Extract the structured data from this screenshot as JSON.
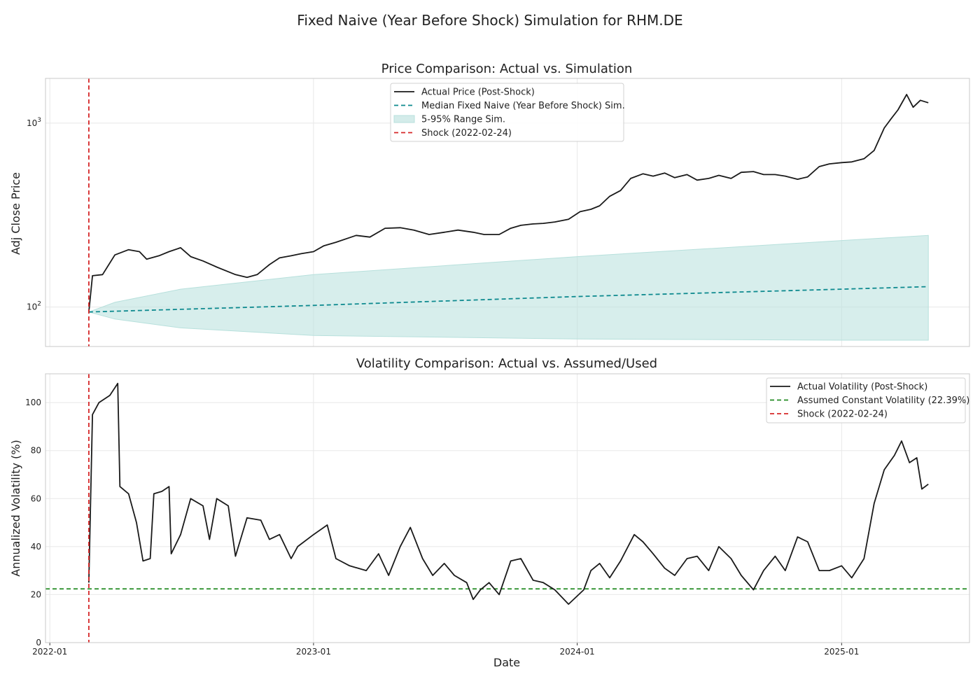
{
  "figure": {
    "title": "Fixed Naive (Year Before Shock) Simulation for RHM.DE"
  },
  "colors": {
    "actual": "#1a1a1a",
    "median": "#0e8a8f",
    "band": "#b7e0dc",
    "shock": "#d62728",
    "assumed": "#228b22",
    "grid": "#e8e8e8",
    "spine": "#c8c8c8"
  },
  "chart_data": [
    {
      "type": "line",
      "title": "Price Comparison: Actual vs. Simulation",
      "xlabel": "",
      "ylabel": "Adj Close Price",
      "yscale": "log",
      "ylim": [
        61,
        1750
      ],
      "xlim": [
        "2021-12-26",
        "2025-06-27"
      ],
      "x_ticks": [
        "2022-01",
        "2023-01",
        "2024-01",
        "2025-01"
      ],
      "y_ticks": [
        {
          "value": 100,
          "base": "10",
          "exp": "2"
        },
        {
          "value": 1000,
          "base": "10",
          "exp": "3"
        }
      ],
      "grid": true,
      "legend_placement": "top-center",
      "shock_date": "2022-02-24",
      "series": [
        {
          "name": "Actual Price (Post-Shock)",
          "style": "solid",
          "points": [
            [
              "2022-02-24",
              94
            ],
            [
              "2022-03-01",
              148
            ],
            [
              "2022-03-15",
              150
            ],
            [
              "2022-04-01",
              192
            ],
            [
              "2022-04-20",
              205
            ],
            [
              "2022-05-05",
              200
            ],
            [
              "2022-05-15",
              182
            ],
            [
              "2022-06-01",
              190
            ],
            [
              "2022-06-15",
              200
            ],
            [
              "2022-07-01",
              210
            ],
            [
              "2022-07-15",
              188
            ],
            [
              "2022-08-01",
              178
            ],
            [
              "2022-08-20",
              165
            ],
            [
              "2022-09-15",
              150
            ],
            [
              "2022-10-01",
              145
            ],
            [
              "2022-10-15",
              150
            ],
            [
              "2022-11-01",
              170
            ],
            [
              "2022-11-15",
              185
            ],
            [
              "2022-12-01",
              190
            ],
            [
              "2022-12-15",
              195
            ],
            [
              "2023-01-01",
              200
            ],
            [
              "2023-01-15",
              215
            ],
            [
              "2023-02-01",
              225
            ],
            [
              "2023-03-01",
              245
            ],
            [
              "2023-03-20",
              240
            ],
            [
              "2023-04-10",
              268
            ],
            [
              "2023-05-01",
              270
            ],
            [
              "2023-05-20",
              262
            ],
            [
              "2023-06-10",
              248
            ],
            [
              "2023-07-01",
              255
            ],
            [
              "2023-07-20",
              262
            ],
            [
              "2023-08-10",
              255
            ],
            [
              "2023-08-25",
              248
            ],
            [
              "2023-09-15",
              248
            ],
            [
              "2023-10-01",
              268
            ],
            [
              "2023-10-15",
              278
            ],
            [
              "2023-11-01",
              283
            ],
            [
              "2023-11-15",
              285
            ],
            [
              "2023-12-01",
              290
            ],
            [
              "2023-12-20",
              300
            ],
            [
              "2024-01-05",
              330
            ],
            [
              "2024-01-20",
              340
            ],
            [
              "2024-02-01",
              355
            ],
            [
              "2024-02-15",
              400
            ],
            [
              "2024-03-01",
              430
            ],
            [
              "2024-03-15",
              500
            ],
            [
              "2024-04-01",
              530
            ],
            [
              "2024-04-15",
              515
            ],
            [
              "2024-05-01",
              535
            ],
            [
              "2024-05-15",
              505
            ],
            [
              "2024-06-01",
              525
            ],
            [
              "2024-06-15",
              490
            ],
            [
              "2024-07-01",
              500
            ],
            [
              "2024-07-15",
              520
            ],
            [
              "2024-08-01",
              500
            ],
            [
              "2024-08-15",
              540
            ],
            [
              "2024-09-01",
              545
            ],
            [
              "2024-09-15",
              525
            ],
            [
              "2024-10-01",
              525
            ],
            [
              "2024-10-15",
              515
            ],
            [
              "2024-11-01",
              495
            ],
            [
              "2024-11-15",
              510
            ],
            [
              "2024-12-01",
              580
            ],
            [
              "2024-12-15",
              600
            ],
            [
              "2025-01-01",
              610
            ],
            [
              "2025-01-15",
              615
            ],
            [
              "2025-02-01",
              640
            ],
            [
              "2025-02-15",
              710
            ],
            [
              "2025-03-01",
              940
            ],
            [
              "2025-03-10",
              1050
            ],
            [
              "2025-03-20",
              1180
            ],
            [
              "2025-04-01",
              1430
            ],
            [
              "2025-04-10",
              1220
            ],
            [
              "2025-04-20",
              1330
            ],
            [
              "2025-05-01",
              1290
            ]
          ]
        },
        {
          "name": "Median Fixed Naive (Year Before Shock) Sim.",
          "style": "dashed",
          "points": [
            [
              "2022-02-24",
              94
            ],
            [
              "2023-01-01",
              102
            ],
            [
              "2024-01-01",
              114
            ],
            [
              "2025-01-01",
              125
            ],
            [
              "2025-05-01",
              129
            ]
          ]
        },
        {
          "name": "5-95% Range Sim.",
          "style": "band",
          "lower": [
            [
              "2022-02-24",
              94
            ],
            [
              "2022-04-01",
              86
            ],
            [
              "2022-07-01",
              77
            ],
            [
              "2023-01-01",
              70
            ],
            [
              "2024-01-01",
              67
            ],
            [
              "2025-01-01",
              66
            ],
            [
              "2025-05-01",
              66
            ]
          ],
          "upper": [
            [
              "2022-02-24",
              94
            ],
            [
              "2022-04-01",
              106
            ],
            [
              "2022-07-01",
              125
            ],
            [
              "2023-01-01",
              150
            ],
            [
              "2024-01-01",
              188
            ],
            [
              "2025-01-01",
              230
            ],
            [
              "2025-05-01",
              245
            ]
          ]
        },
        {
          "name": "Shock (2022-02-24)",
          "style": "vline"
        }
      ]
    },
    {
      "type": "line",
      "title": "Volatility Comparison: Actual vs. Assumed/Used",
      "xlabel": "Date",
      "ylabel": "Annualized Volatility (%)",
      "ylim": [
        0,
        112
      ],
      "y_ticks": [
        0,
        20,
        40,
        60,
        80,
        100
      ],
      "xlim": [
        "2021-12-26",
        "2025-06-27"
      ],
      "x_ticks": [
        "2022-01",
        "2023-01",
        "2024-01",
        "2025-01"
      ],
      "grid": true,
      "legend_placement": "top-right",
      "assumed_volatility": 22.39,
      "shock_date": "2022-02-24",
      "series": [
        {
          "name": "Actual Volatility (Post-Shock)",
          "style": "solid",
          "points": [
            [
              "2022-02-24",
              25
            ],
            [
              "2022-03-01",
              95
            ],
            [
              "2022-03-10",
              100
            ],
            [
              "2022-03-25",
              103
            ],
            [
              "2022-04-05",
              108
            ],
            [
              "2022-04-08",
              65
            ],
            [
              "2022-04-20",
              62
            ],
            [
              "2022-05-01",
              50
            ],
            [
              "2022-05-10",
              34
            ],
            [
              "2022-05-20",
              35
            ],
            [
              "2022-05-25",
              62
            ],
            [
              "2022-06-05",
              63
            ],
            [
              "2022-06-15",
              65
            ],
            [
              "2022-06-18",
              37
            ],
            [
              "2022-07-01",
              45
            ],
            [
              "2022-07-15",
              60
            ],
            [
              "2022-08-01",
              57
            ],
            [
              "2022-08-10",
              43
            ],
            [
              "2022-08-20",
              60
            ],
            [
              "2022-09-05",
              57
            ],
            [
              "2022-09-15",
              36
            ],
            [
              "2022-10-01",
              52
            ],
            [
              "2022-10-20",
              51
            ],
            [
              "2022-11-01",
              43
            ],
            [
              "2022-11-15",
              45
            ],
            [
              "2022-12-01",
              35
            ],
            [
              "2022-12-10",
              40
            ],
            [
              "2023-01-01",
              45
            ],
            [
              "2023-01-20",
              49
            ],
            [
              "2023-02-01",
              35
            ],
            [
              "2023-02-20",
              32
            ],
            [
              "2023-03-15",
              30
            ],
            [
              "2023-04-01",
              37
            ],
            [
              "2023-04-15",
              28
            ],
            [
              "2023-05-01",
              40
            ],
            [
              "2023-05-15",
              48
            ],
            [
              "2023-06-01",
              35
            ],
            [
              "2023-06-15",
              28
            ],
            [
              "2023-07-01",
              33
            ],
            [
              "2023-07-15",
              28
            ],
            [
              "2023-08-01",
              25
            ],
            [
              "2023-08-10",
              18
            ],
            [
              "2023-08-20",
              22
            ],
            [
              "2023-09-01",
              25
            ],
            [
              "2023-09-15",
              20
            ],
            [
              "2023-10-01",
              34
            ],
            [
              "2023-10-15",
              35
            ],
            [
              "2023-11-01",
              26
            ],
            [
              "2023-11-15",
              25
            ],
            [
              "2023-12-01",
              22
            ],
            [
              "2023-12-20",
              16
            ],
            [
              "2024-01-10",
              22
            ],
            [
              "2024-01-20",
              30
            ],
            [
              "2024-02-01",
              33
            ],
            [
              "2024-02-15",
              27
            ],
            [
              "2024-03-01",
              34
            ],
            [
              "2024-03-20",
              45
            ],
            [
              "2024-04-01",
              42
            ],
            [
              "2024-04-15",
              37
            ],
            [
              "2024-05-01",
              31
            ],
            [
              "2024-05-15",
              28
            ],
            [
              "2024-06-01",
              35
            ],
            [
              "2024-06-15",
              36
            ],
            [
              "2024-07-01",
              30
            ],
            [
              "2024-07-15",
              40
            ],
            [
              "2024-08-01",
              35
            ],
            [
              "2024-08-15",
              28
            ],
            [
              "2024-09-01",
              22
            ],
            [
              "2024-09-15",
              30
            ],
            [
              "2024-10-01",
              36
            ],
            [
              "2024-10-15",
              30
            ],
            [
              "2024-11-01",
              44
            ],
            [
              "2024-11-15",
              42
            ],
            [
              "2024-12-01",
              30
            ],
            [
              "2024-12-15",
              30
            ],
            [
              "2025-01-01",
              32
            ],
            [
              "2025-01-15",
              27
            ],
            [
              "2025-02-01",
              35
            ],
            [
              "2025-02-15",
              58
            ],
            [
              "2025-03-01",
              72
            ],
            [
              "2025-03-15",
              78
            ],
            [
              "2025-03-25",
              84
            ],
            [
              "2025-04-05",
              75
            ],
            [
              "2025-04-15",
              77
            ],
            [
              "2025-04-22",
              64
            ],
            [
              "2025-05-01",
              66
            ]
          ]
        },
        {
          "name": "Assumed Constant Volatility (22.39%)",
          "style": "hline-dashed"
        },
        {
          "name": "Shock (2022-02-24)",
          "style": "vline"
        }
      ]
    }
  ]
}
